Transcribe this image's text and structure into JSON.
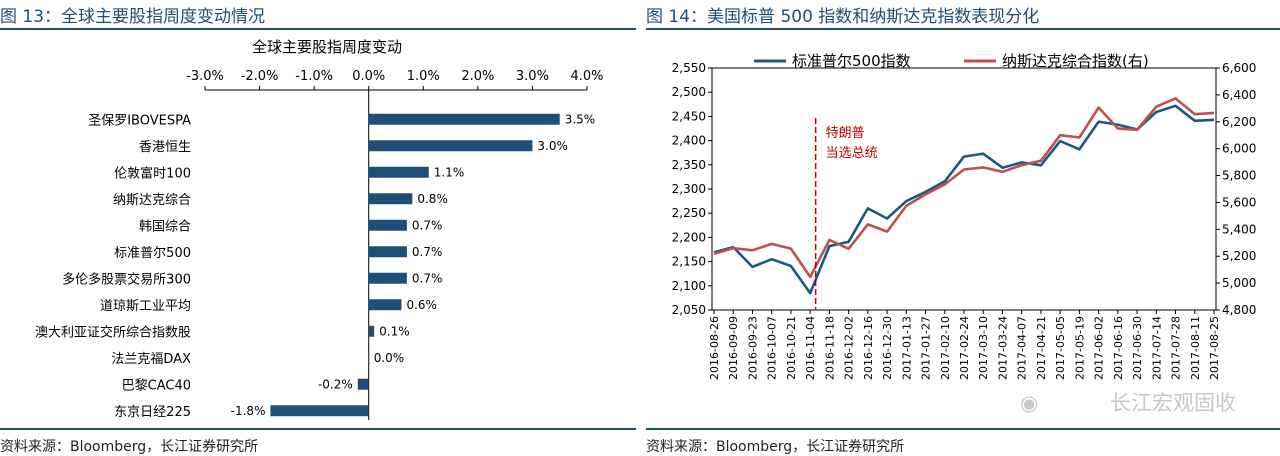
{
  "left_panel": {
    "figure_title": "图 13：全球主要股指周度变动情况",
    "source": "资料来源：Bloomberg，长江证券研究所"
  },
  "right_panel": {
    "figure_title": "图 14：美国标普 500 指数和纳斯达克指数表现分化",
    "source": "资料来源：Bloomberg，长江证券研究所",
    "watermark": "长江宏观固收"
  },
  "colors": {
    "bar": "#1f4e79",
    "spx": "#1a5a80",
    "nasdaq": "#c0504d",
    "event": "#c00000",
    "rule": "#1f4e79"
  },
  "chart_data": [
    {
      "type": "bar",
      "orientation": "horizontal",
      "title": "全球主要股指周度变动",
      "categories": [
        "圣保罗IBOVESPA",
        "香港恒生",
        "伦敦富时100",
        "纳斯达克综合",
        "韩国综合",
        "标准普尔500",
        "多伦多股票交易所300",
        "道琼斯工业平均",
        "澳大利亚证交所综合指数股",
        "法兰克福DAX",
        "巴黎CAC40",
        "东京日经225"
      ],
      "values": [
        3.5,
        3.0,
        1.1,
        0.8,
        0.7,
        0.7,
        0.7,
        0.6,
        0.1,
        0.0,
        -0.2,
        -1.8
      ],
      "value_labels": [
        "3.5%",
        "3.0%",
        "1.1%",
        "0.8%",
        "0.7%",
        "0.7%",
        "0.7%",
        "0.6%",
        "0.1%",
        "0.0%",
        "-0.2%",
        "-1.8%"
      ],
      "xlim": [
        -3.0,
        4.0
      ],
      "xticks": [
        -3,
        -2,
        -1,
        0,
        1,
        2,
        3,
        4
      ],
      "xtick_labels": [
        "-3.0%",
        "-2.0%",
        "-1.0%",
        "0.0%",
        "1.0%",
        "2.0%",
        "3.0%",
        "4.0%"
      ],
      "axis_position": "top"
    },
    {
      "type": "line",
      "title": "",
      "legend": [
        "标准普尔500指数",
        "纳斯达克综合指数(右)"
      ],
      "legend_position": "top",
      "x_tick_labels": [
        "2016-08-26",
        "2016-09-09",
        "2016-09-23",
        "2016-10-07",
        "2016-10-21",
        "2016-11-04",
        "2016-11-18",
        "2016-12-02",
        "2016-12-16",
        "2016-12-30",
        "2017-01-13",
        "2017-01-27",
        "2017-02-10",
        "2017-02-24",
        "2017-03-10",
        "2017-03-24",
        "2017-04-07",
        "2017-04-21",
        "2017-05-05",
        "2017-05-19",
        "2017-06-02",
        "2017-06-16",
        "2017-06-30",
        "2017-07-14",
        "2017-07-28",
        "2017-08-11",
        "2017-08-25"
      ],
      "y_left": {
        "lim": [
          2050,
          2550
        ],
        "ticks": [
          2050,
          2100,
          2150,
          2200,
          2250,
          2300,
          2350,
          2400,
          2450,
          2500,
          2550
        ],
        "tick_labels": [
          "2,050",
          "2,100",
          "2,150",
          "2,200",
          "2,250",
          "2,300",
          "2,350",
          "2,400",
          "2,450",
          "2,500",
          "2,550"
        ]
      },
      "y_right": {
        "lim": [
          4800,
          6600
        ],
        "ticks": [
          4800,
          5000,
          5200,
          5400,
          5600,
          5800,
          6000,
          6200,
          6400,
          6600
        ],
        "tick_labels": [
          "4,800",
          "5,000",
          "5,200",
          "5,400",
          "5,600",
          "5,800",
          "6,000",
          "6,200",
          "6,400",
          "6,600"
        ]
      },
      "series": [
        {
          "name": "标准普尔500指数",
          "axis": "left",
          "values": [
            2169,
            2180,
            2139,
            2155,
            2141,
            2085,
            2182,
            2191,
            2260,
            2239,
            2275,
            2294,
            2316,
            2367,
            2373,
            2344,
            2355,
            2349,
            2399,
            2382,
            2439,
            2433,
            2423,
            2459,
            2472,
            2441,
            2443
          ]
        },
        {
          "name": "纳斯达克综合指数(右)",
          "axis": "right",
          "values": [
            5218,
            5260,
            5244,
            5292,
            5257,
            5046,
            5321,
            5255,
            5437,
            5383,
            5574,
            5660,
            5735,
            5845,
            5861,
            5828,
            5878,
            5910,
            6100,
            6083,
            6306,
            6151,
            6140,
            6312,
            6374,
            6256,
            6266
          ]
        }
      ],
      "annotation": {
        "label_line1": "特朗普",
        "label_line2": "当选总统",
        "x_label": "2016-11-08"
      }
    }
  ]
}
